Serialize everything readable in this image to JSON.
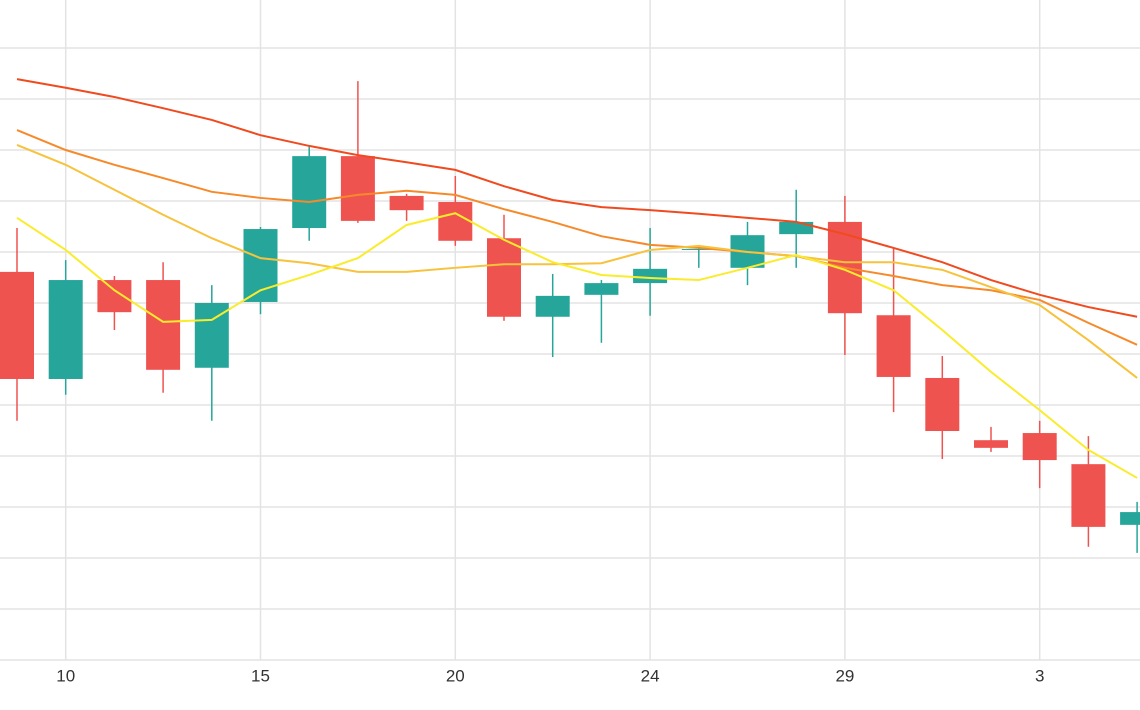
{
  "chart_data": {
    "type": "candlestick",
    "categories": [
      null,
      "10",
      null,
      null,
      null,
      "15",
      null,
      null,
      null,
      "20",
      null,
      null,
      null,
      "24",
      null,
      null,
      null,
      "29",
      null,
      null,
      null,
      "3",
      null,
      null
    ],
    "open": [
      76.1,
      55.1,
      74.5,
      74.5,
      57.3,
      70.2,
      84.7,
      98.8,
      91.0,
      89.8,
      82.7,
      67.3,
      71.6,
      73.9,
      80.4,
      76.9,
      83.5,
      85.9,
      67.6,
      55.3,
      43.1,
      44.5,
      38.4,
      26.5
    ],
    "close": [
      55.1,
      74.5,
      68.2,
      56.9,
      70.0,
      84.5,
      98.8,
      86.1,
      88.2,
      82.2,
      67.3,
      71.4,
      73.9,
      76.7,
      80.6,
      83.3,
      85.9,
      68.0,
      55.5,
      44.9,
      41.6,
      39.2,
      26.1,
      29.0
    ],
    "high": [
      84.7,
      78.4,
      75.3,
      78.0,
      73.5,
      84.9,
      100.8,
      113.5,
      91.4,
      94.9,
      87.3,
      75.7,
      74.5,
      84.7,
      80.8,
      85.9,
      92.2,
      91.0,
      80.8,
      59.6,
      45.7,
      46.9,
      43.9,
      31.0
    ],
    "low": [
      46.9,
      52.0,
      64.7,
      52.4,
      46.9,
      67.8,
      82.2,
      85.7,
      86.1,
      81.2,
      66.5,
      59.4,
      62.2,
      67.5,
      76.9,
      73.5,
      76.9,
      59.8,
      48.6,
      39.4,
      40.8,
      33.7,
      22.2,
      21.0
    ],
    "up_color": "#26a69a",
    "down_color": "#ef5350",
    "series": [
      {
        "color": "#f04a1f",
        "values": [
          113.9,
          112.2,
          110.4,
          108.2,
          105.9,
          102.9,
          100.8,
          99.0,
          97.6,
          96.1,
          92.9,
          90.2,
          88.8,
          88.2,
          87.5,
          86.7,
          85.9,
          83.5,
          80.8,
          78.0,
          74.5,
          71.6,
          69.2,
          67.3
        ]
      },
      {
        "color": "#f68a2a",
        "values": [
          103.9,
          100.0,
          97.1,
          94.5,
          91.8,
          90.6,
          89.8,
          91.2,
          92.0,
          91.2,
          88.4,
          85.9,
          83.1,
          81.4,
          80.8,
          80.0,
          79.2,
          76.9,
          75.3,
          73.5,
          72.5,
          70.6,
          66.1,
          61.8
        ]
      },
      {
        "color": "#f7c23c",
        "values": [
          101.0,
          97.1,
          92.2,
          87.3,
          82.7,
          78.8,
          77.8,
          76.1,
          76.1,
          76.9,
          77.6,
          77.6,
          77.8,
          80.4,
          81.2,
          80.0,
          79.2,
          78.0,
          78.0,
          76.5,
          73.1,
          69.6,
          62.7,
          55.3
        ]
      },
      {
        "color": "#f9ec2c",
        "values": [
          86.7,
          80.4,
          72.5,
          66.3,
          66.7,
          72.5,
          75.5,
          78.8,
          85.3,
          87.6,
          82.4,
          78.0,
          75.5,
          74.9,
          74.5,
          76.9,
          79.4,
          76.5,
          72.5,
          64.7,
          56.5,
          49.0,
          41.2,
          35.7
        ]
      }
    ],
    "ylim": [
      0,
      120
    ],
    "yticks": [
      0,
      10,
      20,
      30,
      40,
      50,
      60,
      70,
      80,
      90,
      100,
      110,
      120
    ],
    "grid": true
  }
}
